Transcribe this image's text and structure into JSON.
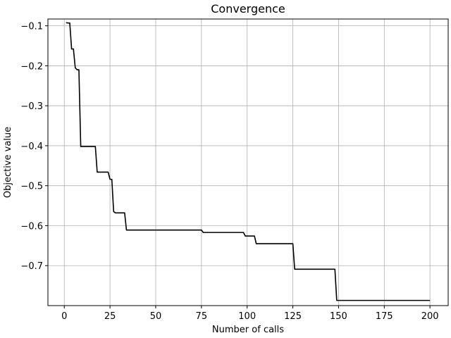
{
  "chart_data": {
    "type": "line",
    "title": "Convergence",
    "xlabel": "Number of calls",
    "ylabel": "Objective value",
    "xlim": [
      -8.95,
      209.95
    ],
    "ylim": [
      -0.8,
      -0.083
    ],
    "xticks": [
      0,
      25,
      50,
      75,
      100,
      125,
      150,
      175,
      200
    ],
    "yticks": [
      -0.1,
      -0.2,
      -0.3,
      -0.4,
      -0.5,
      -0.6,
      -0.7
    ],
    "ytick_labels": [
      "−0.1",
      "−0.2",
      "−0.3",
      "−0.4",
      "−0.5",
      "−0.6",
      "−0.7"
    ],
    "grid": true,
    "series": [
      {
        "color": "#000000",
        "x": [
          1,
          2,
          3,
          4,
          5,
          6,
          7,
          8,
          9,
          17,
          18,
          24,
          25,
          26,
          27,
          28,
          33,
          34,
          75,
          76,
          98,
          99,
          104,
          105,
          125,
          126,
          148,
          149,
          200
        ],
        "y": [
          -0.092,
          -0.093,
          -0.093,
          -0.158,
          -0.158,
          -0.205,
          -0.21,
          -0.21,
          -0.402,
          -0.402,
          -0.466,
          -0.466,
          -0.484,
          -0.484,
          -0.565,
          -0.568,
          -0.568,
          -0.611,
          -0.611,
          -0.617,
          -0.617,
          -0.626,
          -0.626,
          -0.645,
          -0.645,
          -0.709,
          -0.709,
          -0.787,
          -0.787
        ]
      }
    ]
  }
}
